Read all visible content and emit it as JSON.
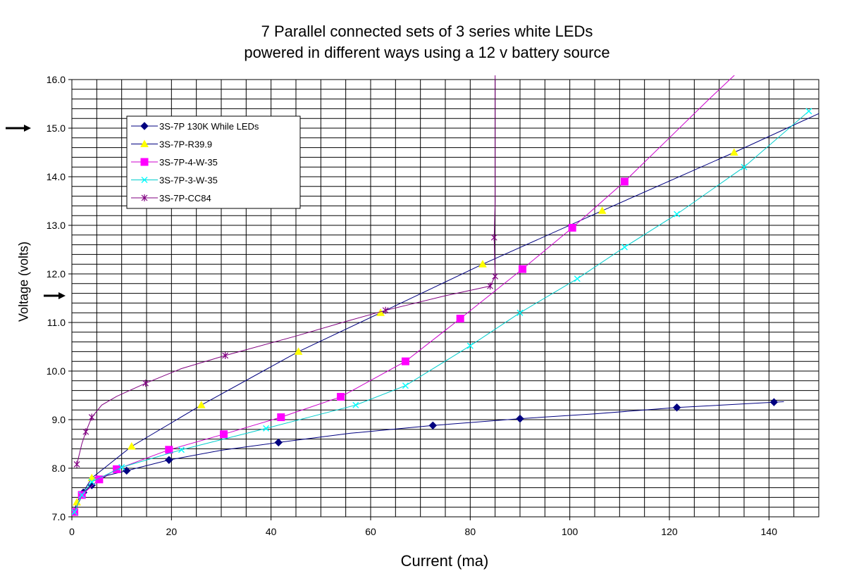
{
  "chart_data": {
    "type": "line",
    "title": "7 Parallel connected sets of 3 series white LEDs",
    "subtitle": "powered in different ways using a 12 v battery source",
    "xlabel": "Current (ma)",
    "ylabel": "Voltage (volts)",
    "xlim": [
      0,
      150
    ],
    "ylim": [
      7.0,
      16.0
    ],
    "x_ticks": [
      0,
      20,
      40,
      60,
      80,
      100,
      120,
      140
    ],
    "x_tick_labels": [
      "0",
      "20",
      "40",
      "60",
      "80",
      "100",
      "120",
      "140"
    ],
    "y_ticks": [
      7.0,
      8.0,
      9.0,
      10.0,
      11.0,
      12.0,
      13.0,
      14.0,
      15.0,
      16.0
    ],
    "y_tick_labels": [
      "7.0",
      "8.0",
      "9.0",
      "10.0",
      "11.0",
      "12.0",
      "13.0",
      "14.0",
      "15.0",
      "16.0"
    ],
    "grid": true,
    "legend": "top-left",
    "arrows": [
      15.0,
      11.55
    ],
    "series": [
      {
        "name": "3S-7P 130K While LEDs",
        "color": "#000080",
        "marker": "diamond",
        "points": [
          [
            0.5,
            7.1
          ],
          [
            2.3,
            7.5
          ],
          [
            4,
            7.65
          ],
          [
            11,
            7.95
          ],
          [
            19.5,
            8.17
          ],
          [
            41.5,
            8.53
          ],
          [
            72.5,
            8.88
          ],
          [
            90,
            9.02
          ],
          [
            121.5,
            9.25
          ],
          [
            141,
            9.36
          ]
        ],
        "line": [
          [
            0.3,
            7.05
          ],
          [
            2.3,
            7.5
          ],
          [
            4,
            7.65
          ],
          [
            7,
            7.85
          ],
          [
            11,
            7.95
          ],
          [
            19.5,
            8.17
          ],
          [
            30,
            8.37
          ],
          [
            41.5,
            8.53
          ],
          [
            56,
            8.72
          ],
          [
            72.5,
            8.88
          ],
          [
            90,
            9.02
          ],
          [
            105,
            9.12
          ],
          [
            121.5,
            9.25
          ],
          [
            141,
            9.36
          ],
          [
            143,
            9.37
          ]
        ]
      },
      {
        "name": "3S-7P-R39.9",
        "color": "#000080",
        "markerColor": "#ffff00",
        "marker": "triangle",
        "points": [
          [
            1,
            7.3
          ],
          [
            4,
            7.8
          ],
          [
            12,
            8.45
          ],
          [
            26,
            9.3
          ],
          [
            45.5,
            10.4
          ],
          [
            62,
            11.2
          ],
          [
            82.5,
            12.2
          ],
          [
            106.5,
            13.3
          ],
          [
            133,
            14.5
          ]
        ],
        "line": [
          [
            0.3,
            7.05
          ],
          [
            1,
            7.3
          ],
          [
            4,
            7.8
          ],
          [
            12,
            8.45
          ],
          [
            26,
            9.3
          ],
          [
            45.5,
            10.4
          ],
          [
            62,
            11.2
          ],
          [
            82.5,
            12.2
          ],
          [
            106.5,
            13.3
          ],
          [
            133,
            14.5
          ],
          [
            150,
            15.3
          ]
        ]
      },
      {
        "name": "3S-7P-4-W-35",
        "color": "#cc00cc",
        "markerColor": "#ff00ff",
        "marker": "square",
        "points": [
          [
            0.5,
            7.1
          ],
          [
            2,
            7.45
          ],
          [
            5.5,
            7.77
          ],
          [
            9,
            7.98
          ],
          [
            19.5,
            8.38
          ],
          [
            30.5,
            8.7
          ],
          [
            42,
            9.05
          ],
          [
            54,
            9.47
          ],
          [
            67,
            10.2
          ],
          [
            78,
            11.08
          ],
          [
            90.5,
            12.1
          ],
          [
            100.5,
            12.95
          ],
          [
            111,
            13.9
          ]
        ],
        "line": [
          [
            0.3,
            7.05
          ],
          [
            0.5,
            7.1
          ],
          [
            2,
            7.45
          ],
          [
            5.5,
            7.77
          ],
          [
            9,
            7.98
          ],
          [
            19.5,
            8.38
          ],
          [
            30.5,
            8.7
          ],
          [
            42,
            9.05
          ],
          [
            54,
            9.47
          ],
          [
            67,
            10.2
          ],
          [
            78,
            11.08
          ],
          [
            90.5,
            12.1
          ],
          [
            100.5,
            12.95
          ],
          [
            111,
            13.9
          ],
          [
            120,
            14.8
          ],
          [
            128,
            15.6
          ],
          [
            134,
            16.18
          ]
        ]
      },
      {
        "name": "3S-7P-3-W-35",
        "color": "#00cccc",
        "markerColor": "#00ffff",
        "marker": "x",
        "points": [
          [
            0.5,
            7.1
          ],
          [
            2,
            7.45
          ],
          [
            4,
            7.72
          ],
          [
            10,
            8.02
          ],
          [
            22,
            8.38
          ],
          [
            39,
            8.82
          ],
          [
            57,
            9.3
          ],
          [
            67,
            9.7
          ],
          [
            80,
            10.52
          ],
          [
            90,
            11.2
          ],
          [
            101.5,
            11.9
          ],
          [
            111,
            12.55
          ],
          [
            121.5,
            13.23
          ],
          [
            135,
            14.2
          ],
          [
            148,
            15.35
          ]
        ],
        "line": [
          [
            0.3,
            7.05
          ],
          [
            0.5,
            7.1
          ],
          [
            2,
            7.45
          ],
          [
            4,
            7.72
          ],
          [
            10,
            8.02
          ],
          [
            22,
            8.38
          ],
          [
            39,
            8.82
          ],
          [
            57,
            9.3
          ],
          [
            67,
            9.7
          ],
          [
            80,
            10.52
          ],
          [
            90,
            11.2
          ],
          [
            101.5,
            11.9
          ],
          [
            111,
            12.55
          ],
          [
            121.5,
            13.23
          ],
          [
            135,
            14.2
          ],
          [
            148,
            15.35
          ]
        ]
      },
      {
        "name": "3S-7P-CC84",
        "color": "#800080",
        "marker": "star",
        "points": [
          [
            1,
            8.08
          ],
          [
            2.8,
            8.75
          ],
          [
            4,
            9.05
          ],
          [
            14.8,
            9.75
          ],
          [
            30.8,
            10.32
          ],
          [
            63,
            11.25
          ],
          [
            84,
            11.75
          ],
          [
            85,
            11.95
          ],
          [
            84.8,
            12.75
          ]
        ],
        "line": [
          [
            1,
            8.08
          ],
          [
            2,
            8.5
          ],
          [
            2.8,
            8.75
          ],
          [
            4,
            9.05
          ],
          [
            6,
            9.3
          ],
          [
            9,
            9.48
          ],
          [
            14.8,
            9.75
          ],
          [
            22,
            10.05
          ],
          [
            30.8,
            10.32
          ],
          [
            45,
            10.72
          ],
          [
            55,
            11.02
          ],
          [
            63,
            11.25
          ],
          [
            75,
            11.55
          ],
          [
            84,
            11.75
          ],
          [
            85,
            11.95
          ],
          [
            84.8,
            12.75
          ],
          [
            85,
            13.5
          ],
          [
            85,
            16.1
          ]
        ]
      }
    ]
  }
}
